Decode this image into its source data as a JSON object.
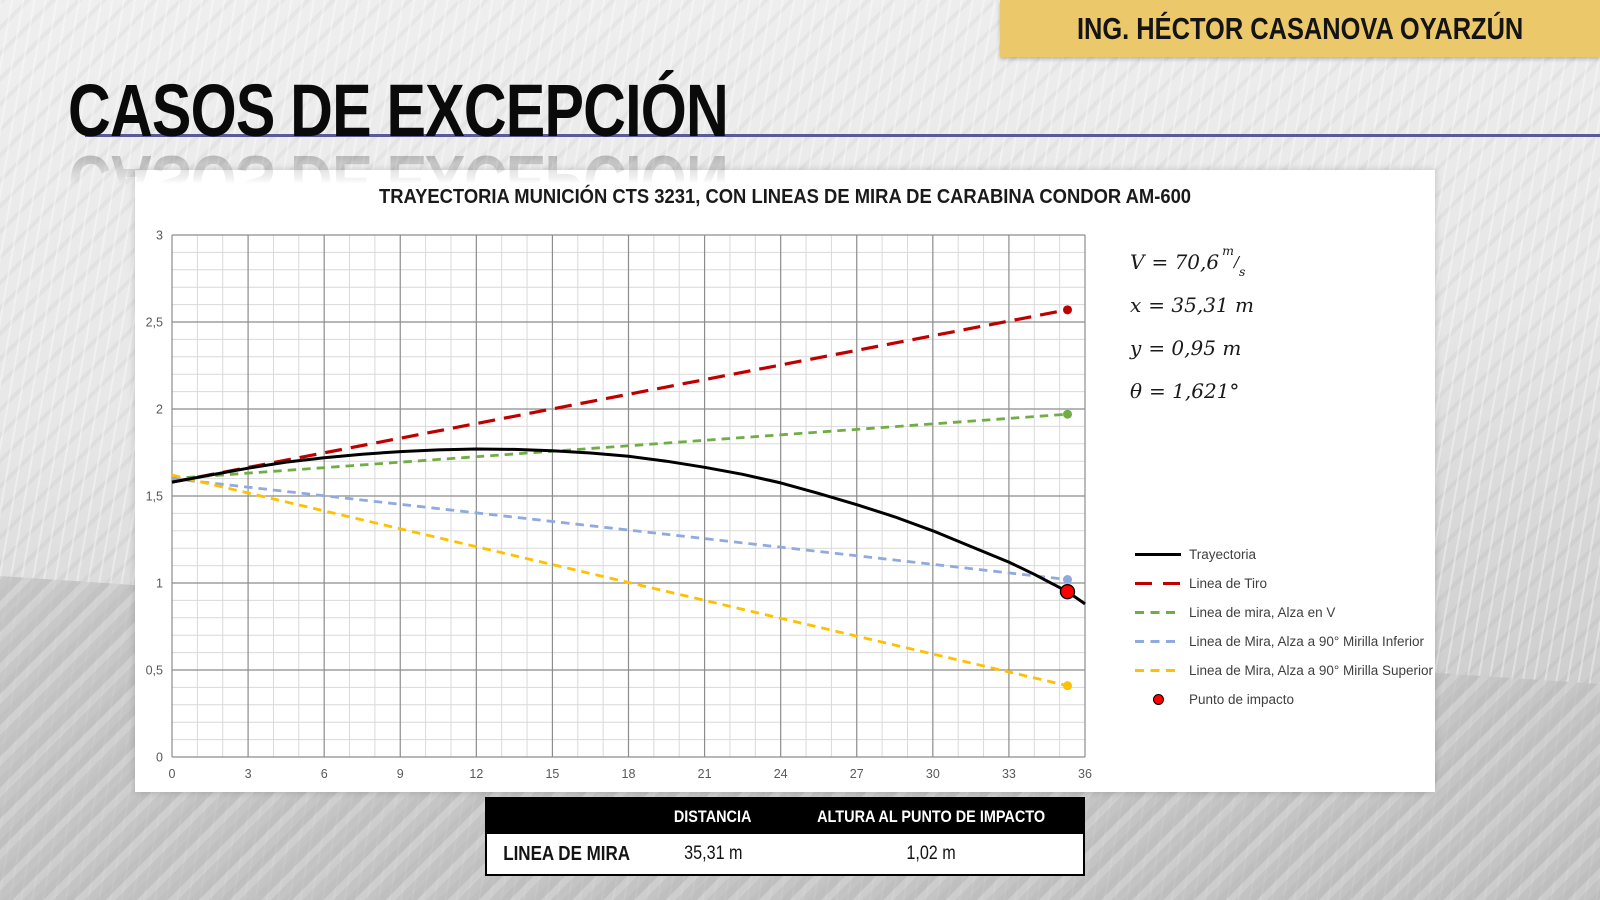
{
  "header": {
    "credit": "ING. HÉCTOR CASANOVA OYARZÚN",
    "accent_color": "#EBC869"
  },
  "title": {
    "text": "CASOS DE EXCEPCIÓN",
    "rule_color": "#5A5A99"
  },
  "chart_data": {
    "type": "line",
    "title": "TRAYECTORIA MUNICIÓN CTS 3231, CON LINEAS DE MIRA DE CARABINA CONDOR AM-600",
    "xlabel": "",
    "ylabel": "",
    "xlim": [
      0,
      36
    ],
    "ylim": [
      0,
      3
    ],
    "x_ticks": [
      0,
      3,
      6,
      9,
      12,
      15,
      18,
      21,
      24,
      27,
      30,
      33,
      36
    ],
    "y_ticks": [
      0,
      0.5,
      1,
      1.5,
      2,
      2.5,
      3
    ],
    "y_tick_labels": [
      "0",
      "0,5",
      "1",
      "1,5",
      "2",
      "2,5",
      "3"
    ],
    "grid": {
      "minor_x_step": 1,
      "minor_y_step": 0.1,
      "major_x_step": 3,
      "major_y_step": 0.5,
      "minor_color": "#D9D9D9",
      "major_color": "#8C8C8C"
    },
    "legend_position": "right",
    "series": [
      {
        "name": "Trayectoria",
        "color": "#000000",
        "style": "solid",
        "width": 3,
        "x": [
          0,
          1.5,
          3,
          4.5,
          6,
          7.5,
          9,
          10.5,
          12,
          13.5,
          15,
          16.5,
          18,
          19.5,
          21,
          22.5,
          24,
          25.5,
          27,
          28.5,
          30,
          31.5,
          33,
          34,
          35.31,
          36
        ],
        "y": [
          1.58,
          1.62,
          1.66,
          1.695,
          1.72,
          1.74,
          1.755,
          1.765,
          1.77,
          1.768,
          1.76,
          1.747,
          1.728,
          1.7,
          1.665,
          1.625,
          1.575,
          1.515,
          1.45,
          1.38,
          1.3,
          1.21,
          1.12,
          1.05,
          0.95,
          0.88
        ]
      },
      {
        "name": "Linea de Tiro",
        "color": "#C00000",
        "style": "long-dash",
        "width": 3.2,
        "x": [
          0,
          35.31
        ],
        "y": [
          1.58,
          2.57
        ],
        "end_dot": true
      },
      {
        "name": "Linea de mira, Alza en V",
        "color": "#70AD47",
        "style": "dash",
        "width": 2.8,
        "x": [
          0,
          35.31
        ],
        "y": [
          1.6,
          1.97
        ],
        "end_dot": true
      },
      {
        "name": "Linea de Mira, Alza a 90° Mirilla Inferior",
        "color": "#8FAADC",
        "style": "dash",
        "width": 2.8,
        "x": [
          0,
          35.31
        ],
        "y": [
          1.6,
          1.02
        ],
        "end_dot": true
      },
      {
        "name": "Linea de Mira, Alza a 90° Mirilla Superior",
        "color": "#FFC000",
        "style": "dash",
        "width": 2.8,
        "x": [
          0,
          35.31
        ],
        "y": [
          1.62,
          0.41
        ],
        "end_dot": true
      }
    ],
    "impact_point": {
      "name": "Punto de impacto",
      "x": 35.31,
      "y": 0.95,
      "color": "#FF0000"
    }
  },
  "annotations": [
    {
      "symbol": "V",
      "value": "= 70,6",
      "frac_num": "m",
      "frac_den": "s"
    },
    {
      "symbol": "x",
      "value": "= 35,31 m"
    },
    {
      "symbol": "y",
      "value": "= 0,95 m"
    },
    {
      "symbol": "θ",
      "value": "= 1,621°"
    }
  ],
  "table": {
    "headers": [
      "",
      "DISTANCIA",
      "ALTURA AL PUNTO DE IMPACTO"
    ],
    "rows": [
      [
        "LINEA DE MIRA",
        "35,31 m",
        "1,02 m"
      ]
    ]
  }
}
